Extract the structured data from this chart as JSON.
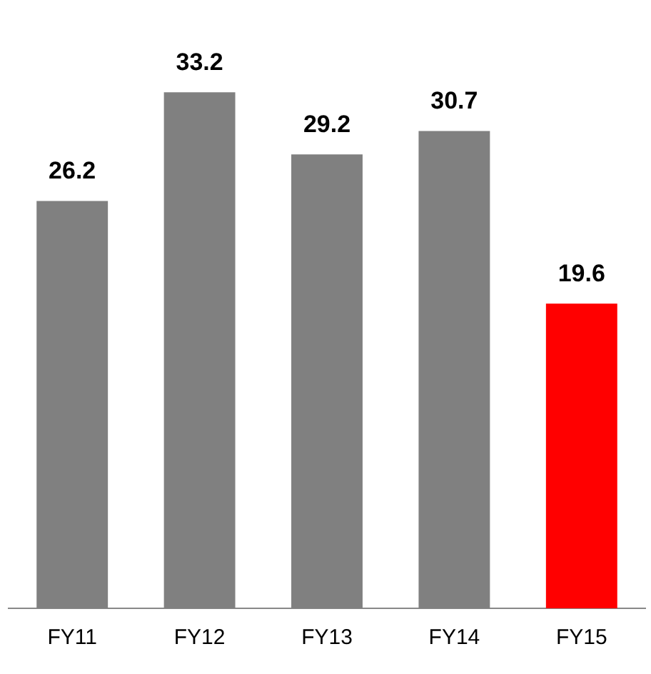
{
  "chart_data": {
    "type": "bar",
    "categories": [
      "FY11",
      "FY12",
      "FY13",
      "FY14",
      "FY15"
    ],
    "values": [
      26.2,
      33.2,
      29.2,
      30.7,
      19.6
    ],
    "colors": [
      "#808080",
      "#808080",
      "#808080",
      "#808080",
      "#ff0000"
    ],
    "data_labels": true,
    "grid": false,
    "legend": false
  }
}
